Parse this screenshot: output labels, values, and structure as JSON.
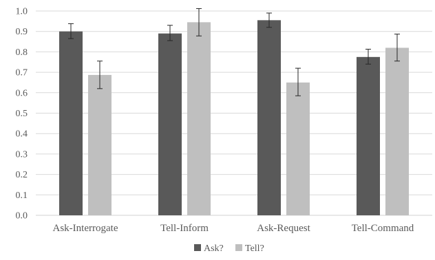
{
  "chart_data": {
    "type": "bar",
    "categories": [
      "Ask-Interrogate",
      "Tell-Inform",
      "Ask-Request",
      "Tell-Command"
    ],
    "series": [
      {
        "name": "Ask?",
        "color": "#595959",
        "values": [
          0.9,
          0.89,
          0.955,
          0.775
        ],
        "error_low": [
          0.865,
          0.855,
          0.92,
          0.74
        ],
        "error_high": [
          0.938,
          0.93,
          0.99,
          0.813
        ]
      },
      {
        "name": "Tell?",
        "color": "#bfbfbf",
        "values": [
          0.687,
          0.945,
          0.65,
          0.82
        ],
        "error_low": [
          0.62,
          0.878,
          0.585,
          0.755
        ],
        "error_high": [
          0.755,
          1.012,
          0.72,
          0.887
        ]
      }
    ],
    "ylim": [
      0,
      1.0
    ],
    "yticks": [
      "0.0",
      "0.1",
      "0.2",
      "0.3",
      "0.4",
      "0.5",
      "0.6",
      "0.7",
      "0.8",
      "0.9",
      "1.0"
    ],
    "grid": true,
    "legend_position": "bottom-center",
    "title": "",
    "xlabel": "",
    "ylabel": ""
  }
}
